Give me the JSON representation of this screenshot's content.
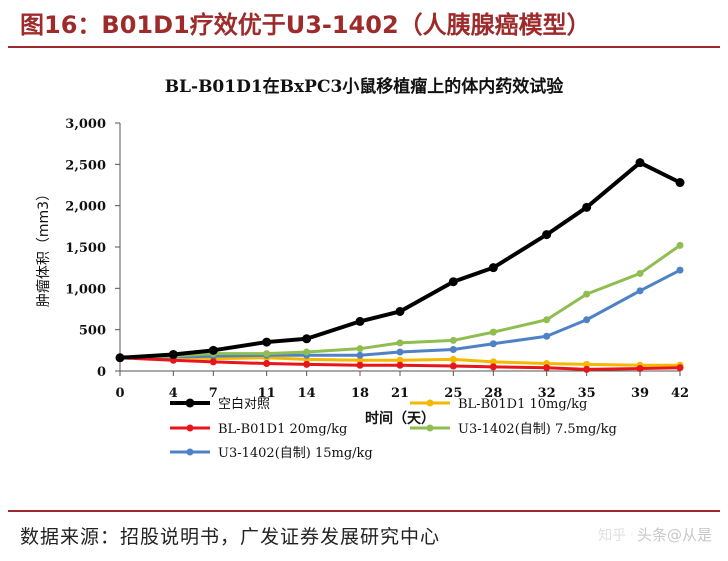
{
  "figure_title": "图16：B01D1疗效优于U3-1402（人胰腺癌模型）",
  "source_note": "数据来源：招股说明书，广发证券发展研究中心",
  "watermark": {
    "part1": "知乎",
    "part2": "头条",
    "handle": "@从是"
  },
  "colors": {
    "frame": "#9d2b2b",
    "blank": "#000000",
    "bl10": "#f5b800",
    "bl20": "#e8161a",
    "u3_75": "#8fbd50",
    "u3_15": "#4f81c7"
  },
  "chart_data": {
    "type": "line",
    "title": "BL-B01D1在BxPC3小鼠移植瘤上的体内药效试验",
    "xlabel": "时间（天）",
    "ylabel": "肿瘤体积（mm3）",
    "ylim": [
      0,
      3000
    ],
    "yticks": [
      0,
      500,
      1000,
      1500,
      2000,
      2500,
      3000
    ],
    "ytick_labels": [
      "0",
      "500",
      "1,000",
      "1,500",
      "2,000",
      "2,500",
      "3,000"
    ],
    "x": [
      0,
      4,
      7,
      11,
      14,
      18,
      21,
      25,
      28,
      32,
      35,
      39,
      42
    ],
    "grid": false,
    "legend_position": "bottom",
    "series": [
      {
        "name": "空白对照",
        "key": "blank",
        "values": [
          160,
          200,
          250,
          350,
          390,
          600,
          720,
          1080,
          1250,
          1650,
          1980,
          2520,
          2280
        ]
      },
      {
        "name": "BL-B01D1 10mg/kg",
        "key": "bl10",
        "values": [
          160,
          170,
          150,
          160,
          140,
          130,
          130,
          140,
          110,
          90,
          80,
          70,
          70
        ]
      },
      {
        "name": "BL-B01D1 20mg/kg",
        "key": "bl20",
        "values": [
          160,
          130,
          110,
          90,
          80,
          70,
          70,
          60,
          50,
          40,
          20,
          30,
          40
        ]
      },
      {
        "name": "U3-1402(自制) 7.5mg/kg",
        "key": "u3_75",
        "values": [
          160,
          180,
          210,
          210,
          230,
          270,
          340,
          370,
          470,
          620,
          930,
          1180,
          1520
        ]
      },
      {
        "name": "U3-1402(自制) 15mg/kg",
        "key": "u3_15",
        "values": [
          160,
          170,
          180,
          190,
          190,
          190,
          230,
          260,
          330,
          420,
          620,
          970,
          1220
        ]
      }
    ],
    "legend_order": [
      "blank",
      "bl10",
      "bl20",
      "u3_75",
      "u3_15"
    ]
  }
}
